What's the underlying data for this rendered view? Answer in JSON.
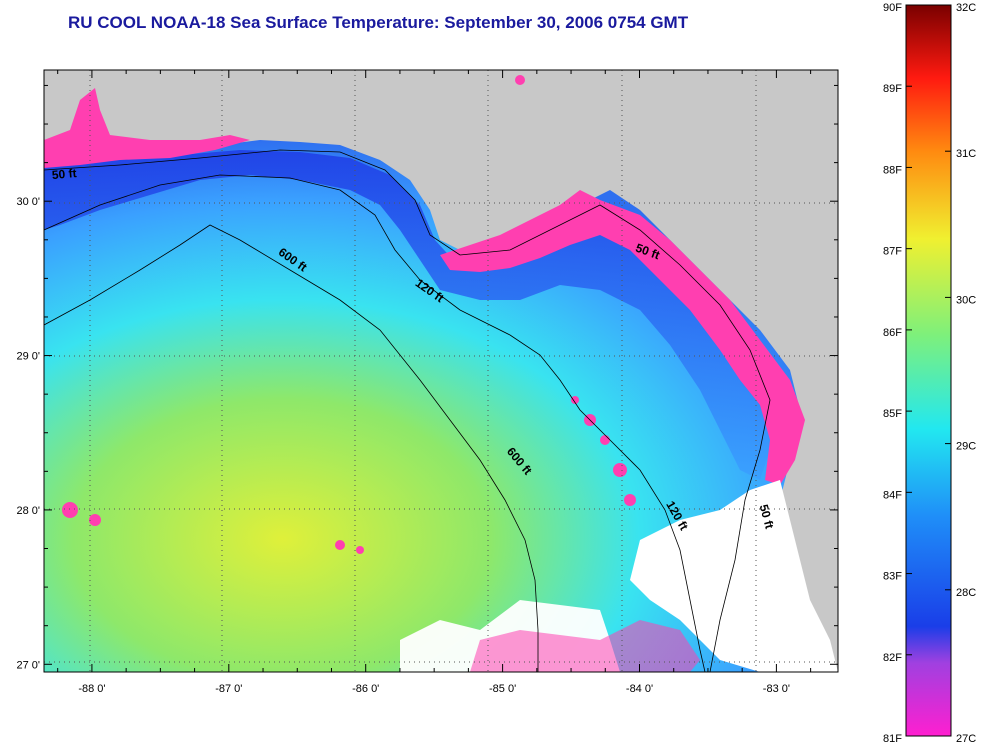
{
  "title": "RU COOL  NOAA-18  Sea Surface Temperature:  September 30, 2006 0754 GMT",
  "map": {
    "lon_ticks": [
      "-88 0'",
      "-87 0'",
      "-86 0'",
      "-85 0'",
      "-84 0'",
      "-83 0'"
    ],
    "lat_ticks": [
      "30 0'",
      "29 0'",
      "28 0'",
      "27 0'"
    ],
    "lon_values": [
      -88,
      -87,
      -86,
      -85,
      -84,
      -83
    ],
    "lat_values": [
      30,
      29,
      28,
      27
    ],
    "lon_range": [
      -88.35,
      -82.55
    ],
    "lat_range": [
      26.95,
      30.85
    ],
    "contour_labels": [
      {
        "text": "50 ft",
        "lon": -88.2,
        "lat": 30.15
      },
      {
        "text": "600 ft",
        "lon": -86.55,
        "lat": 29.6
      },
      {
        "text": "120 ft",
        "lon": -85.55,
        "lat": 29.4
      },
      {
        "text": "50 ft",
        "lon": -83.95,
        "lat": 29.65
      },
      {
        "text": "600 ft",
        "lon": -84.9,
        "lat": 28.3
      },
      {
        "text": "120 ft",
        "lon": -83.75,
        "lat": 27.95
      },
      {
        "text": "50 ft",
        "lon": -83.1,
        "lat": 27.95
      }
    ],
    "colors": {
      "land": "#c8c8c8",
      "cloud": "#ffffff",
      "coast_pink": "#ff3fb0",
      "deep_blue": "#1f3fe6",
      "mid_blue": "#3aa0ff",
      "cyan": "#39e3f0",
      "green": "#8ee86a",
      "yellow": "#dff03a"
    }
  },
  "colorbar": {
    "f_labels": [
      "90F",
      "89F",
      "88F",
      "87F",
      "86F",
      "85F",
      "84F",
      "83F",
      "82F",
      "81F"
    ],
    "c_labels": [
      "32C",
      "31C",
      "30C",
      "29C",
      "28C",
      "27C"
    ]
  }
}
